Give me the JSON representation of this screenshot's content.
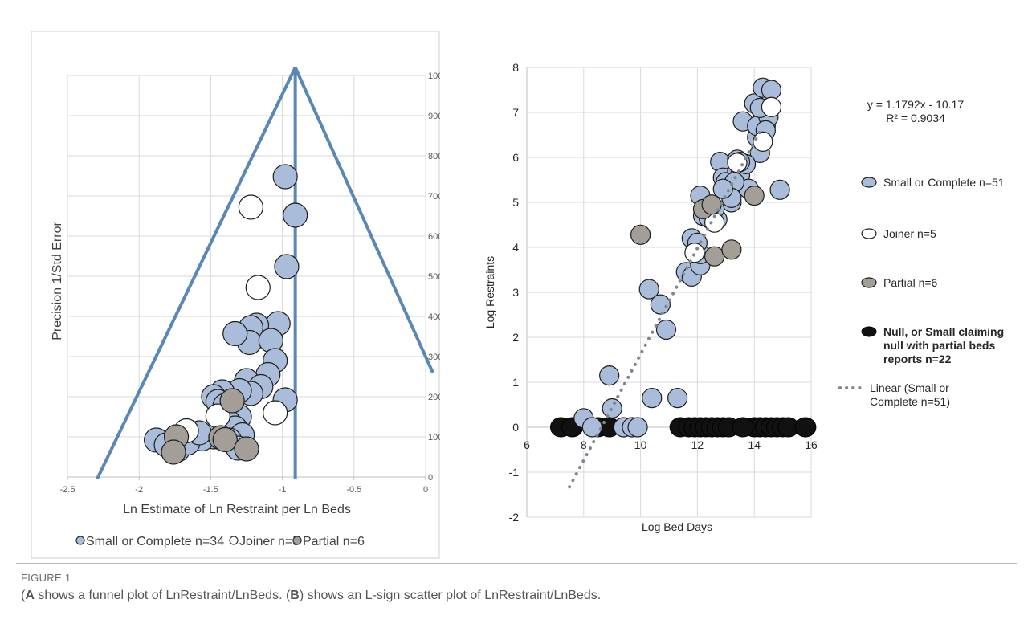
{
  "chart_data": [
    {
      "type": "scatter",
      "panel": "A",
      "title": "",
      "xlabel": "Ln Estimate of Ln Restraint per Ln Beds",
      "ylabel": "Precision 1/Std Error",
      "xlim": [
        -2.5,
        0
      ],
      "ylim": [
        0,
        1000
      ],
      "x_ticks": [
        "-2.5",
        "-2",
        "-1.5",
        "-1",
        "-0.5",
        "0"
      ],
      "y_ticks": [
        "0",
        "100",
        "200",
        "300",
        "400",
        "500",
        "600",
        "700",
        "800",
        "900",
        "1000"
      ],
      "y_axis_side": "right",
      "grid": true,
      "legend_position": "bottom",
      "funnel": {
        "apex": [
          -0.91,
          1020
        ],
        "left_base": [
          -2.3,
          -10
        ],
        "right_base": [
          0.05,
          260
        ],
        "center_x": -0.91
      },
      "series": [
        {
          "name": "Small or Complete n=34",
          "color": "#a9bcd9",
          "points": [
            [
              -0.98,
              748
            ],
            [
              -0.91,
              652
            ],
            [
              -0.97,
              524
            ],
            [
              -1.03,
              382
            ],
            [
              -1.18,
              378
            ],
            [
              -1.22,
              372
            ],
            [
              -1.23,
              335
            ],
            [
              -1.33,
              357
            ],
            [
              -1.08,
              340
            ],
            [
              -1.05,
              290
            ],
            [
              -1.1,
              255
            ],
            [
              -1.25,
              240
            ],
            [
              -1.15,
              225
            ],
            [
              -1.22,
              208
            ],
            [
              -1.3,
              215
            ],
            [
              -1.42,
              212
            ],
            [
              -1.48,
              200
            ],
            [
              -1.45,
              188
            ],
            [
              -1.4,
              178
            ],
            [
              -1.35,
              170
            ],
            [
              -1.3,
              150
            ],
            [
              -1.38,
              138
            ],
            [
              -1.33,
              122
            ],
            [
              -1.28,
              105
            ],
            [
              -1.48,
              100
            ],
            [
              -1.56,
              95
            ],
            [
              -1.37,
              92
            ],
            [
              -1.88,
              92
            ],
            [
              -1.81,
              80
            ],
            [
              -1.73,
              68
            ],
            [
              -1.66,
              85
            ],
            [
              -1.58,
              110
            ],
            [
              -1.31,
              72
            ],
            [
              -0.98,
              192
            ]
          ]
        },
        {
          "name": "Joiner n=5",
          "color": "#ffffff",
          "points": [
            [
              -1.22,
              672
            ],
            [
              -1.17,
              472
            ],
            [
              -1.45,
              152
            ],
            [
              -1.67,
              115
            ],
            [
              -1.05,
              160
            ]
          ]
        },
        {
          "name": "Partial n=6",
          "color": "#a39e98",
          "points": [
            [
              -1.35,
              190
            ],
            [
              -1.74,
              100
            ],
            [
              -1.76,
              62
            ],
            [
              -1.43,
              98
            ],
            [
              -1.4,
              93
            ],
            [
              -1.25,
              70
            ]
          ]
        }
      ]
    },
    {
      "type": "scatter",
      "panel": "B",
      "title": "",
      "xlabel": "Log Bed Days",
      "ylabel": "Log Restraints",
      "xlim": [
        6,
        16
      ],
      "ylim": [
        -2,
        8
      ],
      "x_ticks": [
        "6",
        "8",
        "10",
        "12",
        "14",
        "16"
      ],
      "y_ticks": [
        "-2",
        "-1",
        "0",
        "1",
        "2",
        "3",
        "4",
        "5",
        "6",
        "7",
        "8"
      ],
      "grid": true,
      "legend_position": "right",
      "trendline": {
        "name": "Linear (Small or Complete n=51)",
        "slope": 1.1792,
        "intercept": -10.17,
        "x_range": [
          7.5,
          14.2
        ]
      },
      "equation_text": "y = 1.1792x - 10.17",
      "r2_text": "R² = 0.9034",
      "series": [
        {
          "name": "Small or Complete n=51",
          "color": "#a9bcd9",
          "points": [
            [
              8.0,
              0.2
            ],
            [
              8.3,
              0
            ],
            [
              8.9,
              1.15
            ],
            [
              9.0,
              0.42
            ],
            [
              9.4,
              0
            ],
            [
              9.7,
              0
            ],
            [
              9.9,
              0
            ],
            [
              10.3,
              3.07
            ],
            [
              10.7,
              2.73
            ],
            [
              10.9,
              2.17
            ],
            [
              10.4,
              0.65
            ],
            [
              11.3,
              0.65
            ],
            [
              11.6,
              3.45
            ],
            [
              11.8,
              3.35
            ],
            [
              11.8,
              4.2
            ],
            [
              12.1,
              3.6
            ],
            [
              12.1,
              3.85
            ],
            [
              12.1,
              5.15
            ],
            [
              12.2,
              4.7
            ],
            [
              12.5,
              4.95
            ],
            [
              12.7,
              4.62
            ],
            [
              12.8,
              5.9
            ],
            [
              12.9,
              5.55
            ],
            [
              13.0,
              5.45
            ],
            [
              13.1,
              5.25
            ],
            [
              13.2,
              5.0
            ],
            [
              13.4,
              5.95
            ],
            [
              13.4,
              5.7
            ],
            [
              13.5,
              5.6
            ],
            [
              13.6,
              6.8
            ],
            [
              13.8,
              5.3
            ],
            [
              14.0,
              7.2
            ],
            [
              14.1,
              6.45
            ],
            [
              14.2,
              6.1
            ],
            [
              14.3,
              6.9
            ],
            [
              14.3,
              7.55
            ],
            [
              14.4,
              6.7
            ],
            [
              14.6,
              7.5
            ],
            [
              14.9,
              5.28
            ],
            [
              13.3,
              5.45
            ],
            [
              13.2,
              5.1
            ],
            [
              12.6,
              4.85
            ],
            [
              14.1,
              6.7
            ],
            [
              14.5,
              6.9
            ],
            [
              13.7,
              5.85
            ],
            [
              12.4,
              4.65
            ],
            [
              12.0,
              4.1
            ],
            [
              14.2,
              7.1
            ],
            [
              13.5,
              5.9
            ],
            [
              12.9,
              5.3
            ],
            [
              14.4,
              6.6
            ]
          ]
        },
        {
          "name": "Joiner n=5",
          "color": "#ffffff",
          "points": [
            [
              11.9,
              3.88
            ],
            [
              12.6,
              4.55
            ],
            [
              13.4,
              5.88
            ],
            [
              14.3,
              6.35
            ],
            [
              14.6,
              7.12
            ]
          ]
        },
        {
          "name": "Partial n=6",
          "color": "#a39e98",
          "points": [
            [
              10.0,
              4.28
            ],
            [
              12.2,
              4.85
            ],
            [
              12.5,
              4.95
            ],
            [
              12.6,
              3.8
            ],
            [
              13.2,
              3.95
            ],
            [
              14.0,
              5.15
            ]
          ]
        },
        {
          "name": "Null, or Small claiming null with partial beds reports n=22",
          "color": "#111111",
          "points": [
            [
              7.2,
              0
            ],
            [
              7.6,
              0
            ],
            [
              8.5,
              0
            ],
            [
              8.9,
              0
            ],
            [
              11.4,
              0
            ],
            [
              11.7,
              0
            ],
            [
              11.9,
              0
            ],
            [
              12.1,
              0
            ],
            [
              12.3,
              0
            ],
            [
              12.5,
              0
            ],
            [
              12.7,
              0
            ],
            [
              12.9,
              0
            ],
            [
              13.1,
              0
            ],
            [
              14.0,
              0
            ],
            [
              14.2,
              0
            ],
            [
              14.4,
              0
            ],
            [
              14.6,
              0
            ],
            [
              14.8,
              0
            ],
            [
              15.0,
              0
            ],
            [
              15.2,
              0
            ],
            [
              15.8,
              0
            ],
            [
              13.6,
              0
            ]
          ]
        }
      ]
    }
  ],
  "caption": {
    "figure_label": "FIGURE 1",
    "a": "A",
    "a_text": " shows a funnel plot of LnRestraint/LnBeds. (",
    "b": "B",
    "b_text": " shows an L-sign scatter plot of LnRestraint/LnBeds."
  }
}
